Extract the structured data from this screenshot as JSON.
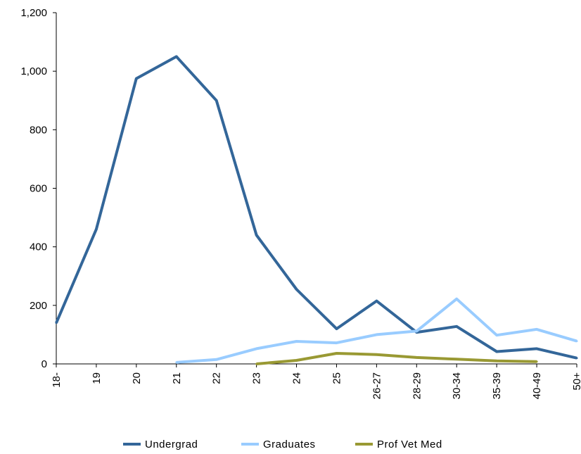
{
  "chart_data": {
    "type": "line",
    "title": "",
    "xlabel": "",
    "ylabel": "",
    "categories": [
      "18-",
      "19",
      "20",
      "21",
      "22",
      "23",
      "24",
      "25",
      "26-27",
      "28-29",
      "30-34",
      "35-39",
      "40-49",
      "50+"
    ],
    "ylim": [
      0,
      1200
    ],
    "yticks": [
      0,
      200,
      400,
      600,
      800,
      1000,
      1200
    ],
    "ytick_labels": [
      "0",
      "200",
      "400",
      "600",
      "800",
      "1,000",
      "1,200"
    ],
    "grid": false,
    "legend_position": "bottom",
    "series": [
      {
        "name": "Undergrad",
        "color": "#336699",
        "values": [
          140,
          460,
          975,
          1050,
          900,
          440,
          255,
          120,
          215,
          108,
          128,
          42,
          52,
          20
        ]
      },
      {
        "name": "Graduates",
        "color": "#99CCFF",
        "values": [
          null,
          null,
          null,
          5,
          15,
          52,
          77,
          72,
          100,
          112,
          222,
          98,
          118,
          78
        ]
      },
      {
        "name": "Prof Vet Med",
        "color": "#999933",
        "values": [
          null,
          null,
          null,
          null,
          null,
          0,
          12,
          36,
          32,
          22,
          16,
          10,
          8,
          null
        ]
      }
    ]
  }
}
